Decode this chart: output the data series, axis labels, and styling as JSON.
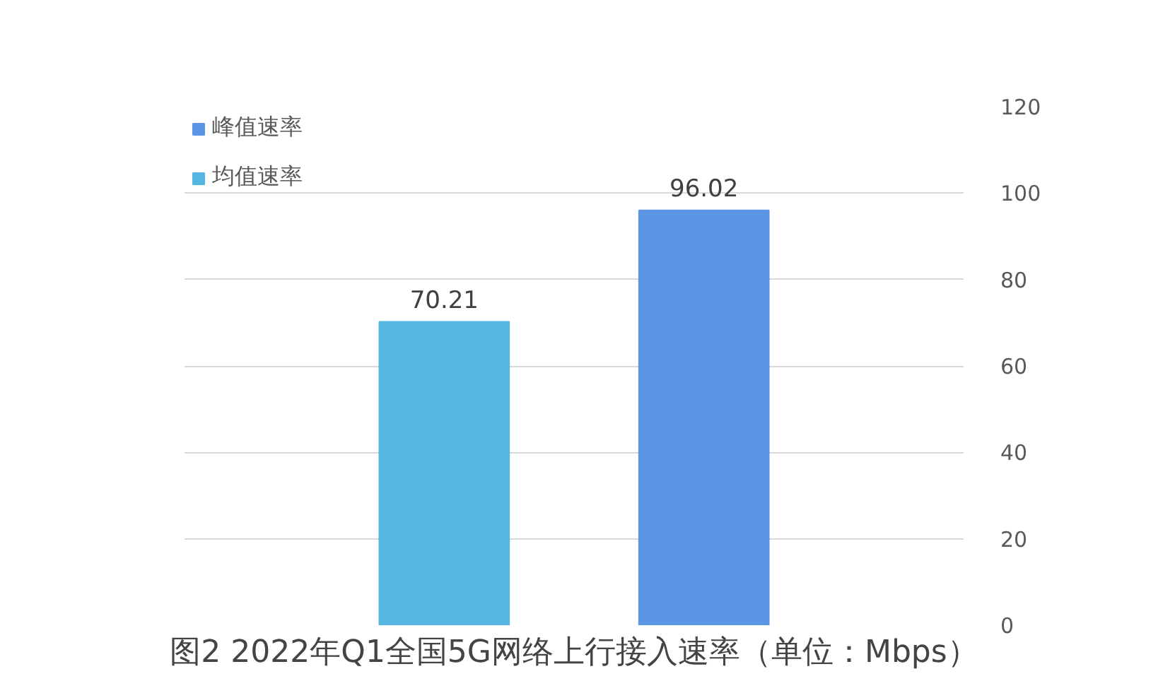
{
  "chart_data": {
    "type": "bar",
    "title": "图2 2022年Q1全国5G网络上行接入速率（单位：Mbps）",
    "categories": [
      null,
      null
    ],
    "series": [
      {
        "name": "峰值速率",
        "color": "#5b95e3",
        "values": [
          null,
          96.02
        ]
      },
      {
        "name": "均值速率",
        "color": "#56b6e2",
        "values": [
          70.21,
          null
        ]
      }
    ],
    "ylim": [
      0,
      120
    ],
    "yticks": [
      0,
      20,
      40,
      60,
      80,
      100,
      120
    ],
    "grid": "y",
    "legend": "top left",
    "data_labels": true,
    "tick_labels": "y"
  }
}
